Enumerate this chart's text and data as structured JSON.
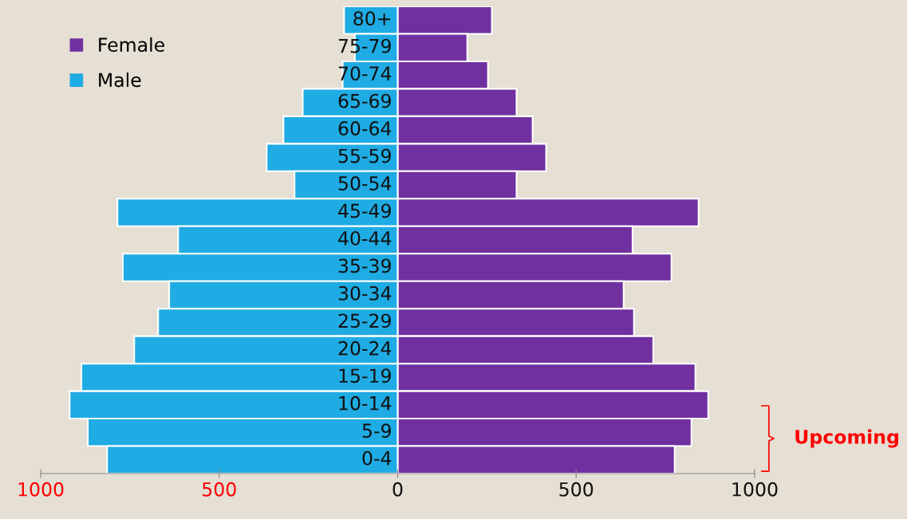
{
  "chart_data": {
    "type": "bar",
    "orientation": "horizontal",
    "categories": [
      "80+",
      "75-79",
      "70-74",
      "65-69",
      "60-64",
      "55-59",
      "50-54",
      "45-49",
      "40-44",
      "35-39",
      "30-34",
      "25-29",
      "20-24",
      "15-19",
      "10-14",
      "5-9",
      "0-4"
    ],
    "series": [
      {
        "name": "Female",
        "color": "#7030a0",
        "values": [
          264,
          195,
          253,
          333,
          378,
          416,
          333,
          843,
          658,
          767,
          633,
          662,
          716,
          834,
          870,
          823,
          776
        ]
      },
      {
        "name": "Male",
        "color": "#1fabe3",
        "values": [
          -150,
          -120,
          -154,
          -266,
          -320,
          -367,
          -289,
          -785,
          -615,
          -770,
          -640,
          -671,
          -738,
          -886,
          -919,
          -868,
          -814
        ]
      }
    ],
    "xlim": [
      -1000,
      1000
    ],
    "xticks": [
      {
        "value": -1000,
        "label": "1000"
      },
      {
        "value": -500,
        "label": "500"
      },
      0,
      500,
      1000
    ],
    "legend": "top left",
    "grid": false,
    "stacked": true,
    "annotations": [
      "Upcoming"
    ]
  }
}
